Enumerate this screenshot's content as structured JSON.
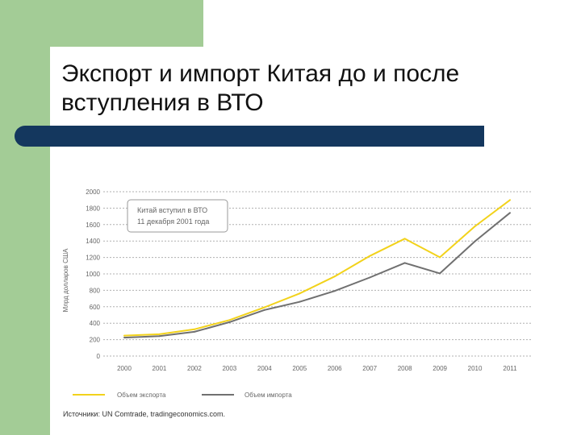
{
  "slide": {
    "title": "Экспорт и импорт Китая до и после вступления в ВТО",
    "source": "Источники: UN Comtrade, tradingeconomics.com."
  },
  "colors": {
    "accent_green": "#a3cc96",
    "title_bar_blue": "#14375e",
    "export_line": "#f2d21b",
    "import_line": "#707070"
  },
  "chart_data": {
    "type": "line",
    "x": [
      "2000",
      "2001",
      "2002",
      "2003",
      "2004",
      "2005",
      "2006",
      "2007",
      "2008",
      "2009",
      "2010",
      "2011"
    ],
    "series": [
      {
        "name": "Объем экспорта",
        "values": [
          249,
          266,
          325,
          438,
          593,
          762,
          969,
          1218,
          1428,
          1202,
          1578,
          1899
        ]
      },
      {
        "name": "Объем импорта",
        "values": [
          225,
          243,
          295,
          413,
          561,
          660,
          792,
          956,
          1133,
          1006,
          1396,
          1743
        ]
      }
    ],
    "ylabel": "Млрд долларов США",
    "y_ticks": [
      "0",
      "200",
      "400",
      "600",
      "800",
      "1000",
      "1200",
      "1400",
      "1600",
      "1800",
      "2000"
    ],
    "ylim": [
      0,
      2000
    ],
    "grid": "horizontal dotted",
    "legend": "bottom",
    "annotation": [
      "Китай вступил в ВТО",
      "11 декабря 2001 года"
    ]
  }
}
